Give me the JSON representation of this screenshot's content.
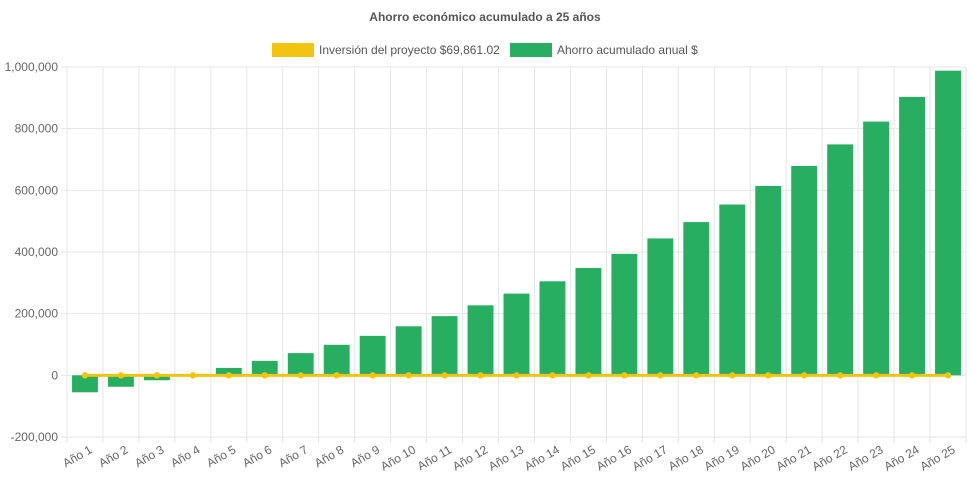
{
  "colors": {
    "investment": "#f1c40f",
    "savings": "#27ae60",
    "grid": "#e5e5e5",
    "text": "#666666"
  },
  "chart_data": {
    "type": "bar",
    "title": "Ahorro económico acumulado a 25 años",
    "legend_position": "top",
    "grid": true,
    "categories": [
      "Año 1",
      "Año 2",
      "Año 3",
      "Año 4",
      "Año 5",
      "Año 6",
      "Año 7",
      "Año 8",
      "Año 9",
      "Año 10",
      "Año 11",
      "Año 12",
      "Año 13",
      "Año 14",
      "Año 15",
      "Año 16",
      "Año 17",
      "Año 18",
      "Año 19",
      "Año 20",
      "Año 21",
      "Año 22",
      "Año 23",
      "Año 24",
      "Año 25"
    ],
    "ylim": [
      -200000,
      1000000
    ],
    "yticks": [
      -200000,
      0,
      200000,
      400000,
      600000,
      800000,
      1000000
    ],
    "ytick_labels": [
      "-200,000",
      "0",
      "200,000",
      "400,000",
      "600,000",
      "800,000",
      "1,000,000"
    ],
    "series": [
      {
        "name": "Inversión del proyecto $69,861.02",
        "type": "line",
        "color": "#f1c40f",
        "values": [
          0,
          0,
          0,
          0,
          0,
          0,
          0,
          0,
          0,
          0,
          0,
          0,
          0,
          0,
          0,
          0,
          0,
          0,
          0,
          0,
          0,
          0,
          0,
          0,
          0
        ]
      },
      {
        "name": "Ahorro acumulado anual $",
        "type": "bar",
        "color": "#27ae60",
        "values": [
          -55000,
          -37000,
          -16000,
          3000,
          24000,
          47000,
          72000,
          99000,
          128000,
          159000,
          192000,
          227000,
          265000,
          305000,
          348000,
          394000,
          444000,
          497000,
          554000,
          614000,
          679000,
          749000,
          823000,
          903000,
          988000
        ]
      }
    ]
  }
}
